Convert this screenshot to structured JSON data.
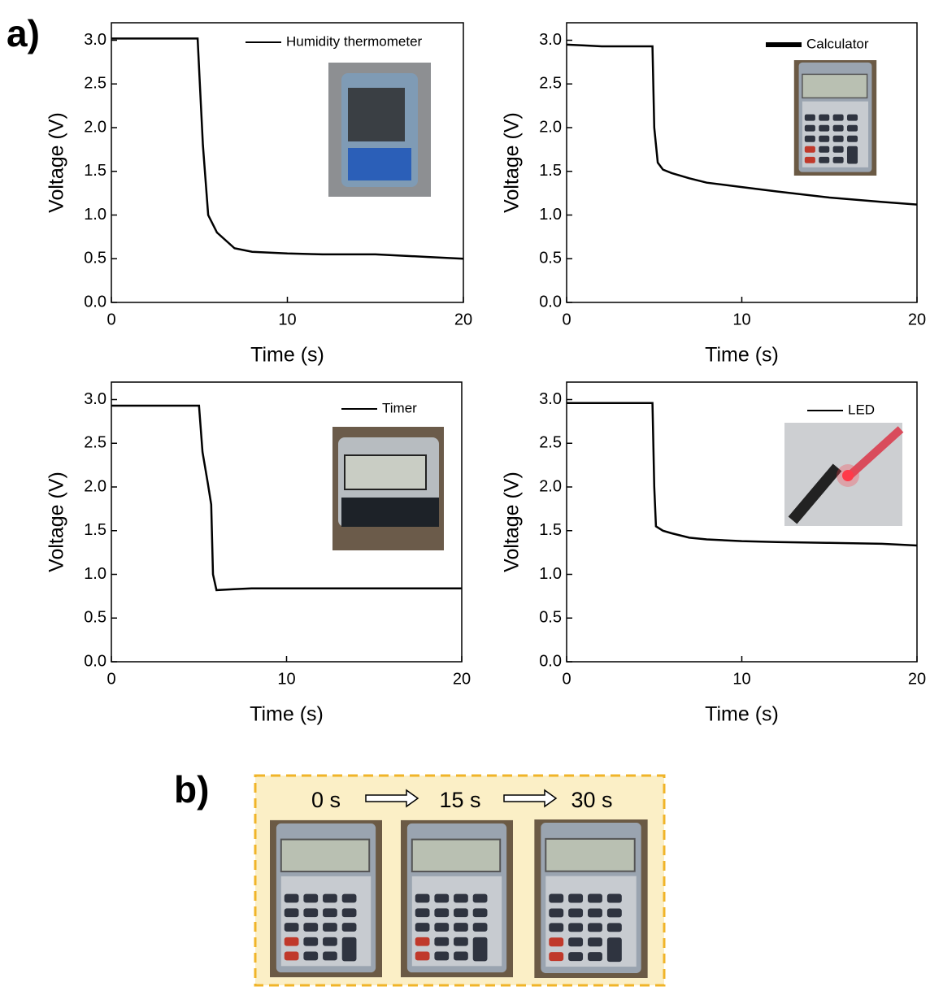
{
  "panel_labels": [
    "a)",
    "b)"
  ],
  "sequence": [
    "0 s",
    "15 s",
    "30 s"
  ],
  "chart_data": [
    {
      "type": "line",
      "xlabel": "Time (s)",
      "ylabel": "Voltage (V)",
      "xlim": [
        0,
        20
      ],
      "xticks": [
        0,
        10,
        20
      ],
      "ylim": [
        0,
        3.2
      ],
      "yticks": [
        {
          "value": 0,
          "label": "0.0"
        },
        {
          "value": 0.5,
          "label": "0.5"
        },
        {
          "value": 1,
          "label": "1.0"
        },
        {
          "value": 1.5,
          "label": "1.5"
        },
        {
          "value": 2,
          "label": "2.0"
        },
        {
          "value": 2.5,
          "label": "2.5"
        },
        {
          "value": 3,
          "label": "3.0"
        }
      ],
      "x": [
        0,
        1,
        2,
        3,
        4,
        4.9,
        5,
        5.2,
        5.5,
        6,
        7,
        8,
        10,
        12,
        15,
        18,
        20
      ],
      "series": [
        {
          "name": "Humidity thermometer",
          "color": "#000000",
          "values": [
            3.02,
            3.02,
            3.02,
            3.02,
            3.02,
            3.02,
            2.6,
            1.8,
            1.0,
            0.8,
            0.62,
            0.58,
            0.56,
            0.55,
            0.55,
            0.52,
            0.5
          ]
        }
      ]
    },
    {
      "type": "line",
      "xlabel": "Time (s)",
      "ylabel": "Voltage (V)",
      "xlim": [
        0,
        20
      ],
      "xticks": [
        0,
        10,
        20
      ],
      "ylim": [
        0,
        3.2
      ],
      "yticks": [
        {
          "value": 0,
          "label": "0.0"
        },
        {
          "value": 0.5,
          "label": "0.5"
        },
        {
          "value": 1,
          "label": "1.0"
        },
        {
          "value": 1.5,
          "label": "1.5"
        },
        {
          "value": 2,
          "label": "2.0"
        },
        {
          "value": 2.5,
          "label": "2.5"
        },
        {
          "value": 3,
          "label": "3.0"
        }
      ],
      "x": [
        0,
        1,
        2,
        3,
        4,
        4.9,
        5,
        5.2,
        5.5,
        6,
        7,
        8,
        10,
        12,
        15,
        18,
        20
      ],
      "series": [
        {
          "name": "Calculator",
          "color": "#000000",
          "values": [
            2.95,
            2.94,
            2.93,
            2.93,
            2.93,
            2.93,
            2.0,
            1.6,
            1.52,
            1.48,
            1.42,
            1.37,
            1.32,
            1.27,
            1.2,
            1.15,
            1.12
          ]
        }
      ]
    },
    {
      "type": "line",
      "xlabel": "Time (s)",
      "ylabel": "Voltage (V)",
      "xlim": [
        0,
        20
      ],
      "xticks": [
        0,
        10,
        20
      ],
      "ylim": [
        0,
        3.2
      ],
      "yticks": [
        {
          "value": 0,
          "label": "0.0"
        },
        {
          "value": 0.5,
          "label": "0.5"
        },
        {
          "value": 1,
          "label": "1.0"
        },
        {
          "value": 1.5,
          "label": "1.5"
        },
        {
          "value": 2,
          "label": "2.0"
        },
        {
          "value": 2.5,
          "label": "2.5"
        },
        {
          "value": 3,
          "label": "3.0"
        }
      ],
      "x": [
        0,
        1,
        2,
        3,
        4,
        5,
        5.2,
        5.5,
        5.7,
        5.8,
        6,
        7,
        8,
        10,
        12,
        15,
        18,
        20
      ],
      "series": [
        {
          "name": "Timer",
          "color": "#000000",
          "values": [
            2.93,
            2.93,
            2.93,
            2.93,
            2.93,
            2.93,
            2.4,
            2.05,
            1.8,
            1.0,
            0.82,
            0.83,
            0.84,
            0.84,
            0.84,
            0.84,
            0.84,
            0.84
          ]
        }
      ]
    },
    {
      "type": "line",
      "xlabel": "Time (s)",
      "ylabel": "Voltage (V)",
      "xlim": [
        0,
        20
      ],
      "xticks": [
        0,
        10,
        20
      ],
      "ylim": [
        0,
        3.2
      ],
      "yticks": [
        {
          "value": 0,
          "label": "0.0"
        },
        {
          "value": 0.5,
          "label": "0.5"
        },
        {
          "value": 1,
          "label": "1.0"
        },
        {
          "value": 1.5,
          "label": "1.5"
        },
        {
          "value": 2,
          "label": "2.0"
        },
        {
          "value": 2.5,
          "label": "2.5"
        },
        {
          "value": 3,
          "label": "3.0"
        }
      ],
      "x": [
        0,
        1,
        2,
        3,
        4,
        4.9,
        5,
        5.1,
        5.5,
        6,
        7,
        8,
        10,
        12,
        15,
        18,
        20
      ],
      "series": [
        {
          "name": "LED",
          "color": "#000000",
          "values": [
            2.96,
            2.96,
            2.96,
            2.96,
            2.96,
            2.96,
            2.0,
            1.55,
            1.5,
            1.47,
            1.42,
            1.4,
            1.38,
            1.37,
            1.36,
            1.35,
            1.33
          ]
        }
      ]
    }
  ]
}
